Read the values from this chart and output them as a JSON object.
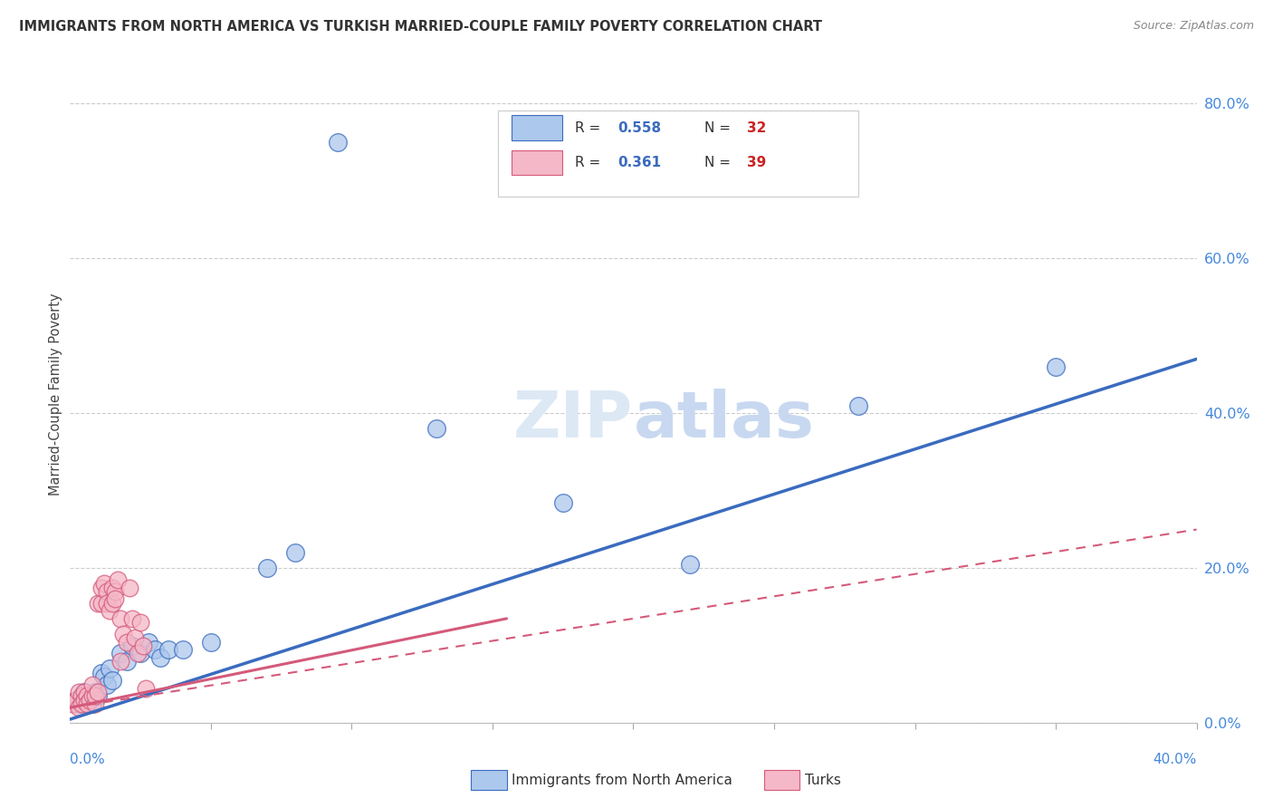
{
  "title": "IMMIGRANTS FROM NORTH AMERICA VS TURKISH MARRIED-COUPLE FAMILY POVERTY CORRELATION CHART",
  "source": "Source: ZipAtlas.com",
  "ylabel": "Married-Couple Family Poverty",
  "blue_label": "Immigrants from North America",
  "pink_label": "Turks",
  "blue_R": "0.558",
  "blue_N": "32",
  "pink_R": "0.361",
  "pink_N": "39",
  "blue_color": "#adc8ed",
  "blue_line_color": "#3a6bbf",
  "pink_color": "#f5b8c8",
  "pink_line_color": "#d45a7a",
  "blue_scatter_x": [
    0.002,
    0.003,
    0.004,
    0.005,
    0.006,
    0.007,
    0.008,
    0.009,
    0.01,
    0.011,
    0.012,
    0.013,
    0.014,
    0.015,
    0.018,
    0.02,
    0.022,
    0.025,
    0.028,
    0.03,
    0.032,
    0.035,
    0.04,
    0.05,
    0.07,
    0.08,
    0.095,
    0.13,
    0.175,
    0.22,
    0.28,
    0.35
  ],
  "blue_scatter_y": [
    0.03,
    0.025,
    0.03,
    0.04,
    0.035,
    0.03,
    0.025,
    0.04,
    0.035,
    0.065,
    0.06,
    0.05,
    0.07,
    0.055,
    0.09,
    0.08,
    0.1,
    0.09,
    0.105,
    0.095,
    0.085,
    0.095,
    0.095,
    0.105,
    0.2,
    0.22,
    0.75,
    0.38,
    0.285,
    0.205,
    0.41,
    0.46
  ],
  "pink_scatter_x": [
    0.001,
    0.002,
    0.003,
    0.003,
    0.004,
    0.004,
    0.005,
    0.005,
    0.006,
    0.006,
    0.007,
    0.008,
    0.008,
    0.009,
    0.009,
    0.01,
    0.01,
    0.011,
    0.011,
    0.012,
    0.013,
    0.013,
    0.014,
    0.015,
    0.015,
    0.016,
    0.016,
    0.017,
    0.018,
    0.018,
    0.019,
    0.02,
    0.021,
    0.022,
    0.023,
    0.024,
    0.025,
    0.026,
    0.027
  ],
  "pink_scatter_y": [
    0.025,
    0.03,
    0.04,
    0.02,
    0.035,
    0.025,
    0.04,
    0.03,
    0.035,
    0.025,
    0.03,
    0.035,
    0.05,
    0.025,
    0.035,
    0.04,
    0.155,
    0.155,
    0.175,
    0.18,
    0.17,
    0.155,
    0.145,
    0.155,
    0.175,
    0.17,
    0.16,
    0.185,
    0.08,
    0.135,
    0.115,
    0.105,
    0.175,
    0.135,
    0.11,
    0.09,
    0.13,
    0.1,
    0.045
  ],
  "blue_line_x": [
    0.0,
    0.4
  ],
  "blue_line_y": [
    0.005,
    0.47
  ],
  "pink_solid_line_x": [
    0.0,
    0.155
  ],
  "pink_solid_line_y": [
    0.02,
    0.135
  ],
  "pink_dashed_line_x": [
    0.0,
    0.4
  ],
  "pink_dashed_line_y": [
    0.02,
    0.25
  ],
  "xlim": [
    0.0,
    0.4
  ],
  "ylim": [
    0.0,
    0.85
  ],
  "yticks": [
    0.0,
    0.2,
    0.4,
    0.6,
    0.8
  ],
  "yticklabels": [
    "0.0%",
    "20.0%",
    "40.0%",
    "60.0%",
    "80.0%"
  ],
  "xtick_minor": [
    0.05,
    0.1,
    0.15,
    0.2,
    0.25,
    0.3,
    0.35,
    0.4
  ],
  "background_color": "#ffffff",
  "grid_color": "#cccccc"
}
